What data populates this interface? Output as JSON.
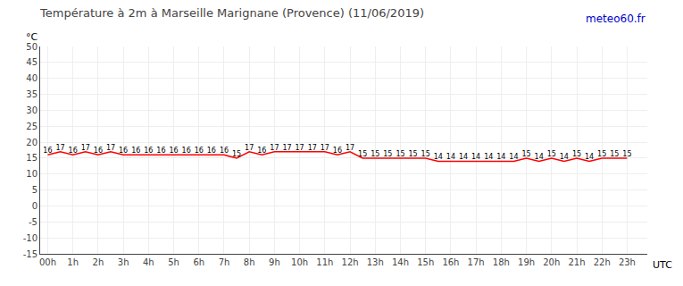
{
  "chart_data": {
    "type": "line",
    "title": "Température à 2m à Marseille Marignane (Provence) (11/06/2019)",
    "y_label": "°C",
    "x_label": "UTC",
    "annotations": [
      {
        "text": "meteo60.fr",
        "color": "#0000cc"
      }
    ],
    "x": [
      0,
      0.5,
      1,
      1.5,
      2,
      2.5,
      3,
      3.5,
      4,
      4.5,
      5,
      5.5,
      6,
      6.5,
      7,
      7.5,
      8,
      8.5,
      9,
      9.5,
      10,
      10.5,
      11,
      11.5,
      12,
      12.5,
      13,
      13.5,
      14,
      14.5,
      15,
      15.5,
      16,
      16.5,
      17,
      17.5,
      18,
      18.5,
      19,
      19.5,
      20,
      20.5,
      21,
      21.5,
      22,
      22.5,
      23
    ],
    "values": [
      16,
      17,
      16,
      17,
      16,
      17,
      16,
      16,
      16,
      16,
      16,
      16,
      16,
      16,
      16,
      15,
      17,
      16,
      17,
      17,
      17,
      17,
      17,
      16,
      17,
      15,
      15,
      15,
      15,
      15,
      15,
      14,
      14,
      14,
      14,
      14,
      14,
      14,
      15,
      14,
      15,
      14,
      15,
      14,
      15,
      15,
      15
    ],
    "color": "#ff0000",
    "xlim": [
      -0.3,
      23.8
    ],
    "xticks": [
      {
        "value": 0,
        "label": "00h"
      },
      {
        "value": 1,
        "label": "1h"
      },
      {
        "value": 2,
        "label": "2h"
      },
      {
        "value": 3,
        "label": "3h"
      },
      {
        "value": 4,
        "label": "4h"
      },
      {
        "value": 5,
        "label": "5h"
      },
      {
        "value": 6,
        "label": "6h"
      },
      {
        "value": 7,
        "label": "7h"
      },
      {
        "value": 8,
        "label": "8h"
      },
      {
        "value": 9,
        "label": "9h"
      },
      {
        "value": 10,
        "label": "10h"
      },
      {
        "value": 11,
        "label": "11h"
      },
      {
        "value": 12,
        "label": "12h"
      },
      {
        "value": 13,
        "label": "13h"
      },
      {
        "value": 14,
        "label": "14h"
      },
      {
        "value": 15,
        "label": "15h"
      },
      {
        "value": 16,
        "label": "16h"
      },
      {
        "value": 17,
        "label": "17h"
      },
      {
        "value": 18,
        "label": "18h"
      },
      {
        "value": 19,
        "label": "19h"
      },
      {
        "value": 20,
        "label": "20h"
      },
      {
        "value": 21,
        "label": "21h"
      },
      {
        "value": 22,
        "label": "22h"
      },
      {
        "value": 23,
        "label": "23h"
      }
    ],
    "ylim": [
      -15,
      50
    ],
    "yticks": [
      -15,
      -10,
      -5,
      0,
      5,
      10,
      15,
      20,
      25,
      30,
      35,
      40,
      45,
      50
    ],
    "grid": true,
    "data_labels": true
  }
}
